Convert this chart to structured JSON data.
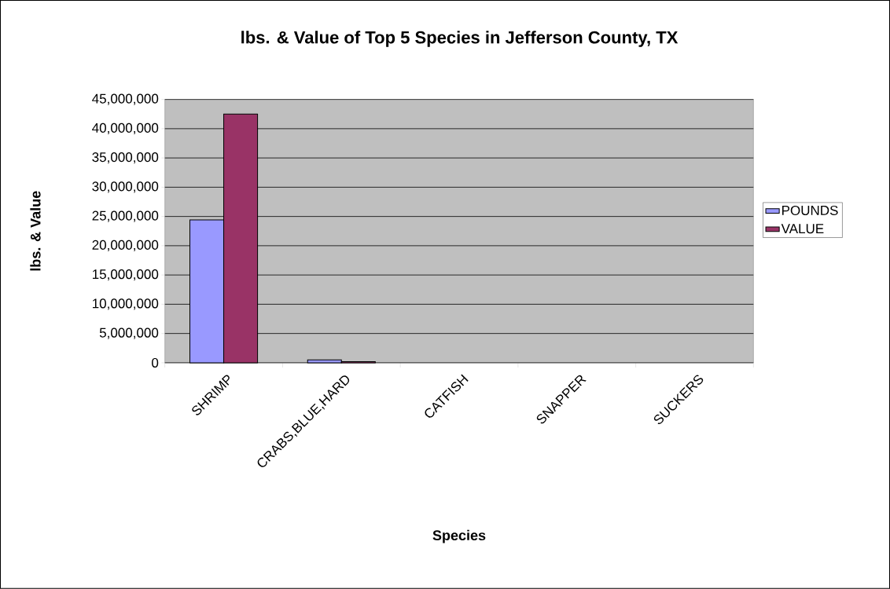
{
  "chart_data": {
    "type": "bar",
    "title": "lbs. & Value of Top 5 Species in Jefferson County, TX",
    "xlabel": "Species",
    "ylabel": "lbs. & Value",
    "categories": [
      "SHRIMP",
      "CRABS,BLUE,HARD",
      "CATFISH",
      "SNAPPER",
      "SUCKERS"
    ],
    "series": [
      {
        "name": "POUNDS",
        "color": "#9999ff",
        "values": [
          24400000,
          500000,
          0,
          0,
          0
        ]
      },
      {
        "name": "VALUE",
        "color": "#993366",
        "values": [
          42500000,
          200000,
          0,
          0,
          0
        ]
      }
    ],
    "ylim": [
      0,
      45000000
    ],
    "yticks": [
      {
        "value": 0,
        "label": "0"
      },
      {
        "value": 5000000,
        "label": "5,000,000"
      },
      {
        "value": 10000000,
        "label": "10,000,000"
      },
      {
        "value": 15000000,
        "label": "15,000,000"
      },
      {
        "value": 20000000,
        "label": "20,000,000"
      },
      {
        "value": 25000000,
        "label": "25,000,000"
      },
      {
        "value": 30000000,
        "label": "30,000,000"
      },
      {
        "value": 35000000,
        "label": "35,000,000"
      },
      {
        "value": 40000000,
        "label": "40,000,000"
      },
      {
        "value": 45000000,
        "label": "45,000,000"
      }
    ],
    "grid": "y",
    "legend": "right"
  }
}
